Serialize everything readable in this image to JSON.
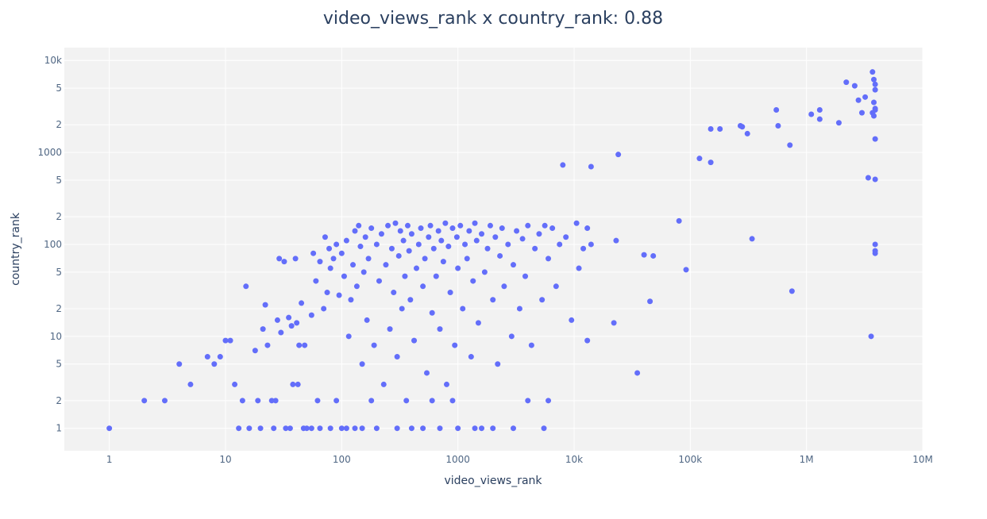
{
  "chart_data": {
    "type": "scatter",
    "title": "video_views_rank x country_rank: 0.88",
    "x_label": "video_views_rank",
    "y_label": "country_rank",
    "xscale": "log",
    "yscale": "log",
    "grid": true,
    "xlim": [
      0.41,
      10000000
    ],
    "ylim": [
      0.57,
      13800
    ],
    "xticks": [
      1,
      10,
      100,
      1000,
      {
        "value": 10000,
        "label": "10k"
      },
      {
        "value": 100000,
        "label": "100k"
      },
      {
        "value": 1000000,
        "label": "1M"
      },
      {
        "value": 10000000,
        "label": "10M"
      }
    ],
    "yticks": [
      1,
      2,
      5,
      10,
      {
        "value": 20,
        "label": "2"
      },
      {
        "value": 50,
        "label": "5"
      },
      100,
      {
        "value": 200,
        "label": "2"
      },
      {
        "value": 500,
        "label": "5"
      },
      1000,
      {
        "value": 2000,
        "label": "2"
      },
      {
        "value": 5000,
        "label": "5"
      },
      {
        "value": 10000,
        "label": "10k"
      }
    ],
    "x": [
      3700000,
      3800000,
      3900000,
      3900000,
      3800000,
      3900000,
      3700000,
      3800000,
      3900000,
      2200000,
      2600000,
      2800000,
      3200000,
      3000000,
      1300000,
      1100000,
      1300000,
      1900000,
      550000,
      570000,
      270000,
      280000,
      310000,
      150000,
      180000,
      720000,
      3900000,
      3400000,
      3900000,
      120000,
      150000,
      24000,
      8000,
      14000,
      80000,
      23000,
      340000,
      40000,
      48000,
      92000,
      45000,
      750000,
      22000,
      13000,
      35000,
      3900000,
      3900000,
      3900000,
      3600000,
      1,
      2,
      3,
      4,
      5,
      7,
      8,
      9,
      10,
      11,
      12,
      13,
      14,
      15,
      16,
      18,
      19,
      20,
      21,
      22,
      23,
      25,
      26,
      27,
      28,
      29,
      30,
      32,
      33,
      35,
      36,
      37,
      38,
      40,
      41,
      42,
      43,
      45,
      47,
      48,
      55,
      57,
      60,
      62,
      65,
      70,
      72,
      75,
      78,
      80,
      85,
      90,
      95,
      100,
      105,
      110,
      115,
      120,
      125,
      130,
      135,
      140,
      145,
      150,
      155,
      160,
      165,
      170,
      180,
      190,
      200,
      210,
      220,
      230,
      240,
      250,
      260,
      270,
      280,
      290,
      300,
      310,
      320,
      330,
      340,
      350,
      360,
      370,
      380,
      390,
      400,
      420,
      440,
      460,
      480,
      500,
      520,
      540,
      560,
      580,
      600,
      620,
      650,
      680,
      700,
      720,
      750,
      780,
      800,
      830,
      860,
      900,
      940,
      980,
      1000,
      1050,
      1100,
      1150,
      1200,
      1250,
      1300,
      1350,
      1400,
      1450,
      1500,
      1600,
      1700,
      1800,
      1900,
      2000,
      2100,
      2200,
      2300,
      2400,
      2500,
      2700,
      2900,
      3000,
      3200,
      3400,
      3600,
      3800,
      4000,
      4300,
      4600,
      5000,
      5300,
      5600,
      6000,
      6500,
      7000,
      7500,
      8500,
      9500,
      10500,
      11000,
      12000,
      13000,
      14000,
      6000,
      5500,
      4000,
      3000,
      2000,
      1600,
      1400,
      1000,
      900,
      700,
      600,
      500,
      400,
      300,
      200,
      180,
      150,
      130,
      110,
      100,
      90,
      80,
      65,
      55,
      50
    ],
    "series": [
      {
        "color": "#636efa",
        "values": [
          7500,
          6200,
          5500,
          4800,
          3500,
          3000,
          2700,
          2500,
          2900,
          5800,
          5300,
          3700,
          4000,
          2700,
          2900,
          2600,
          2300,
          2100,
          2900,
          1950,
          1950,
          1900,
          1600,
          1800,
          1800,
          1200,
          1400,
          530,
          510,
          860,
          780,
          950,
          730,
          700,
          180,
          110,
          115,
          77,
          75,
          53,
          24,
          31,
          14,
          9,
          4,
          100,
          85,
          80,
          10,
          1,
          2,
          2,
          5,
          3,
          6,
          5,
          6,
          9,
          9,
          3,
          1,
          2,
          35,
          1,
          7,
          2,
          1,
          12,
          22,
          8,
          2,
          1,
          2,
          15,
          70,
          11,
          65,
          1,
          16,
          1,
          13,
          3,
          70,
          14,
          3,
          8,
          23,
          1,
          8,
          17,
          80,
          40,
          2,
          65,
          20,
          120,
          30,
          90,
          55,
          70,
          100,
          28,
          80,
          45,
          110,
          10,
          25,
          60,
          140,
          35,
          160,
          95,
          5,
          50,
          120,
          15,
          70,
          150,
          8,
          100,
          40,
          130,
          3,
          60,
          160,
          12,
          90,
          30,
          170,
          6,
          75,
          140,
          20,
          110,
          45,
          2,
          160,
          85,
          25,
          130,
          9,
          55,
          100,
          150,
          35,
          70,
          4,
          120,
          160,
          18,
          90,
          45,
          140,
          12,
          110,
          65,
          170,
          3,
          95,
          30,
          150,
          8,
          120,
          55,
          160,
          20,
          100,
          70,
          140,
          6,
          40,
          170,
          110,
          14,
          130,
          50,
          90,
          160,
          25,
          120,
          5,
          75,
          150,
          35,
          100,
          10,
          60,
          140,
          20,
          115,
          45,
          160,
          8,
          90,
          130,
          25,
          160,
          70,
          150,
          35,
          100,
          120,
          15,
          170,
          55,
          90,
          150,
          100,
          2,
          1,
          2,
          1,
          1,
          1,
          1,
          1,
          2,
          1,
          2,
          1,
          1,
          1,
          1,
          2,
          1,
          1,
          1,
          1,
          2,
          1,
          1,
          1,
          1
        ]
      }
    ]
  }
}
